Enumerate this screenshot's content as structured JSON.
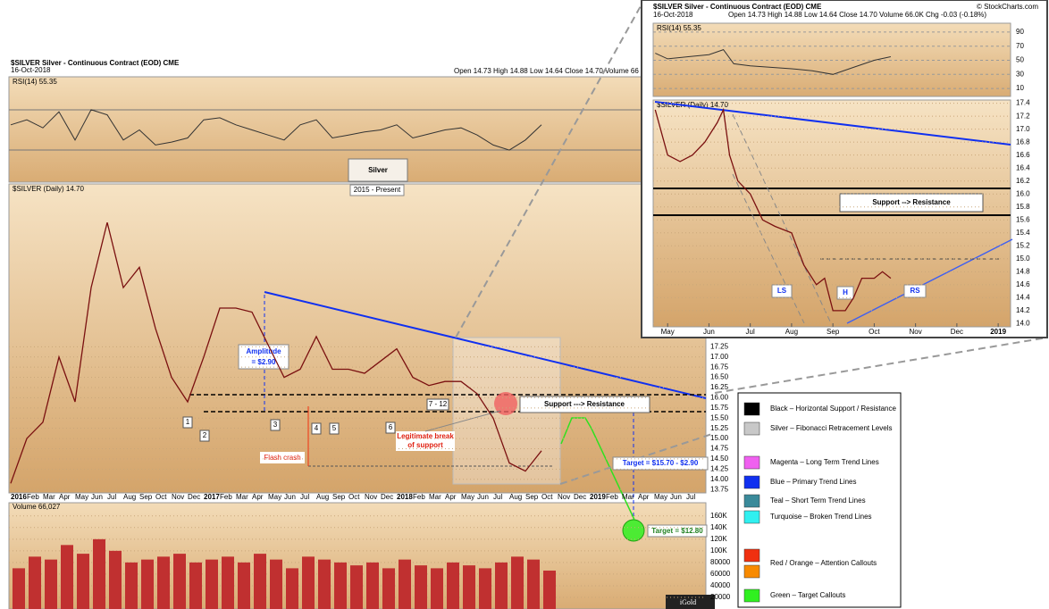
{
  "chart_data": [
    {
      "type": "line",
      "title": "$SILVER Silver - Continuous Contract (EOD) CME",
      "date": "16-Oct-2018",
      "header": "Open 14.73 High 14.88 Low 14.64 Close 14.70 Volume 66",
      "panel_label": "$SILVER (Daily) 14.70",
      "annotations": {
        "heading": "Silver",
        "subheading": "2015 - Present",
        "amplitude": "Amplitude",
        "amplitude_value": "= $2.90",
        "points": [
          "1",
          "2",
          "3",
          "4",
          "5",
          "6",
          "7 - 12"
        ],
        "flash_crash": "Flash crash",
        "break_1": "Legitimate break",
        "break_2": "of support",
        "support_resistance": "Support ---> Resistance",
        "target_range": "Target = $15.70 - $2.90",
        "target": "Target = $12.80",
        "watermark": "iGold"
      },
      "categories": [
        "2016",
        "Feb",
        "Mar",
        "Apr",
        "May",
        "Jun",
        "Jul",
        "Aug",
        "Sep",
        "Oct",
        "Nov",
        "Dec",
        "2017",
        "Feb",
        "Mar",
        "Apr",
        "May",
        "Jun",
        "Jul",
        "Aug",
        "Sep",
        "Oct",
        "Nov",
        "Dec",
        "2018",
        "Feb",
        "Mar",
        "Apr",
        "May",
        "Jun",
        "Jul",
        "Aug",
        "Sep",
        "Oct",
        "Nov",
        "Dec",
        "2019",
        "Feb",
        "Mar",
        "Apr",
        "May",
        "Jun",
        "Jul"
      ],
      "series": [
        {
          "color": "#7a1010",
          "values": [
            13.9,
            15.0,
            15.4,
            17.0,
            15.9,
            18.7,
            20.3,
            18.7,
            19.2,
            17.7,
            16.5,
            15.9,
            17.0,
            18.2,
            18.2,
            18.1,
            17.3,
            16.5,
            16.7,
            17.5,
            16.7,
            16.7,
            16.6,
            16.9,
            17.2,
            16.5,
            16.3,
            16.4,
            16.4,
            16.1,
            15.5,
            14.4,
            14.2,
            14.7,
            null,
            null,
            null,
            null,
            null,
            null,
            null,
            null,
            null
          ]
        }
      ],
      "ylim": [
        13.6,
        21.2
      ],
      "yticks": [
        13.75,
        {
          "value": 14,
          "label": "14.00"
        },
        14.25,
        {
          "value": 14.5,
          "label": "14.50"
        },
        14.75,
        {
          "value": 15,
          "label": "15.00"
        },
        15.25,
        {
          "value": 15.5,
          "label": "15.50"
        },
        15.75,
        {
          "value": 16,
          "label": "16.00"
        },
        16.25,
        {
          "value": 16.5,
          "label": "16.50"
        },
        16.75,
        {
          "value": 17,
          "label": "17.00"
        },
        17.25
      ],
      "legend": {
        "items": [
          {
            "colors": [
              "#000000"
            ],
            "label": "Black – Horizontal Support / Resistance"
          },
          {
            "colors": [
              "#c8c8c8"
            ],
            "label": "Silver – Fibonacci Retracement Levels"
          },
          {
            "colors": [
              "#f060f0"
            ],
            "label": "Magenta – Long Term Trend Lines"
          },
          {
            "colors": [
              "#1030f0"
            ],
            "label": "Blue – Primary Trend Lines"
          },
          {
            "colors": [
              "#3a8a9a"
            ],
            "label": "Teal – Short Term Trend Lines"
          },
          {
            "colors": [
              "#30f0f0"
            ],
            "label": "Turquoise – Broken Trend Lines"
          },
          {
            "colors": [
              "#f03010",
              "#f88a00"
            ],
            "label": "Red / Orange – Attention Callouts"
          },
          {
            "colors": [
              "#30f020"
            ],
            "label": "Green – Target Callouts"
          }
        ]
      }
    },
    {
      "type": "line",
      "panel_label": "RSI(14) 55.35",
      "color": "#333333",
      "values": [
        55,
        60,
        52,
        68,
        40,
        70,
        65,
        40,
        50,
        35,
        38,
        42,
        60,
        62,
        55,
        50,
        45,
        40,
        55,
        60,
        42,
        45,
        48,
        50,
        55,
        42,
        46,
        50,
        52,
        45,
        35,
        30,
        40,
        55,
        null,
        null,
        null,
        null,
        null,
        null,
        null,
        null,
        null
      ],
      "ylim": [
        0,
        100
      ]
    },
    {
      "type": "bar",
      "panel_label": "Volume 66,027",
      "color": "#c03030",
      "values": [
        70000,
        90000,
        85000,
        110000,
        95000,
        120000,
        100000,
        80000,
        85000,
        90000,
        95000,
        80000,
        85000,
        90000,
        80000,
        95000,
        85000,
        70000,
        90000,
        85000,
        80000,
        75000,
        80000,
        70000,
        85000,
        75000,
        70000,
        80000,
        75000,
        70000,
        80000,
        90000,
        85000,
        66027,
        null,
        null,
        null,
        null,
        null,
        null,
        null,
        null,
        null
      ],
      "ylim": [
        0,
        175000
      ],
      "yticks": [
        20000,
        40000,
        60000,
        80000,
        {
          "value": 100000,
          "label": "100K"
        },
        {
          "value": 120000,
          "label": "120K"
        },
        {
          "value": 140000,
          "label": "140K"
        },
        {
          "value": 160000,
          "label": "160K"
        }
      ]
    },
    {
      "type": "line",
      "title": "$SILVER Silver - Continuous Contract (EOD) CME",
      "date": "16-Oct-2018",
      "header": "Open 14.73 High 14.88 Low 14.64 Close 14.70 Volume 66.0K Chg -0.03 (-0.18%)",
      "credit": "© StockCharts.com",
      "panel_label": "$SILVER (Daily) 14.70",
      "annotations": {
        "support_resistance": "Support --> Resistance",
        "ls": "LS",
        "h": "H",
        "rs": "RS"
      },
      "color": "#7a1010",
      "x": [
        -0.3,
        0,
        0.3,
        0.6,
        0.9,
        1.2,
        1.35,
        1.5,
        1.7,
        2.0,
        2.3,
        2.6,
        3.0,
        3.3,
        3.6,
        3.8,
        4.0,
        4.3,
        4.5,
        4.7,
        5.0,
        5.2,
        5.4
      ],
      "values": [
        17.3,
        16.6,
        16.5,
        16.6,
        16.8,
        17.1,
        17.3,
        16.6,
        16.2,
        16.0,
        15.6,
        15.5,
        15.4,
        14.9,
        14.6,
        14.7,
        14.2,
        14.2,
        14.4,
        14.7,
        14.7,
        14.8,
        14.7
      ],
      "xlim": [
        -0.35,
        8.3
      ],
      "xticks": [
        {
          "value": 0,
          "label": "May"
        },
        {
          "value": 1,
          "label": "Jun"
        },
        {
          "value": 2,
          "label": "Jul"
        },
        {
          "value": 3,
          "label": "Aug"
        },
        {
          "value": 4,
          "label": "Sep"
        },
        {
          "value": 5,
          "label": "Oct"
        },
        {
          "value": 6,
          "label": "Nov"
        },
        {
          "value": 7,
          "label": "Dec"
        },
        {
          "value": 8,
          "label": "2019"
        }
      ],
      "ylim": [
        13.95,
        17.45
      ],
      "yticks": [
        {
          "value": 14,
          "label": "14.0"
        },
        14.2,
        14.4,
        14.6,
        14.8,
        {
          "value": 15,
          "label": "15.0"
        },
        15.2,
        15.4,
        15.6,
        15.8,
        {
          "value": 16,
          "label": "16.0"
        },
        16.2,
        16.4,
        16.6,
        16.8,
        {
          "value": 17,
          "label": "17.0"
        },
        17.2,
        17.4
      ]
    },
    {
      "type": "line",
      "panel_label": "RSI(14) 55.35",
      "color": "#333333",
      "x": [
        -0.3,
        0,
        0.5,
        1,
        1.35,
        1.6,
        2,
        2.5,
        3,
        3.5,
        4,
        4.5,
        5,
        5.4
      ],
      "values": [
        60,
        52,
        55,
        58,
        65,
        45,
        42,
        40,
        38,
        35,
        30,
        40,
        50,
        55
      ],
      "xlim": [
        -0.35,
        8.3
      ],
      "ylim": [
        0,
        100
      ],
      "yticks": [
        10,
        30,
        50,
        70,
        90
      ]
    }
  ]
}
